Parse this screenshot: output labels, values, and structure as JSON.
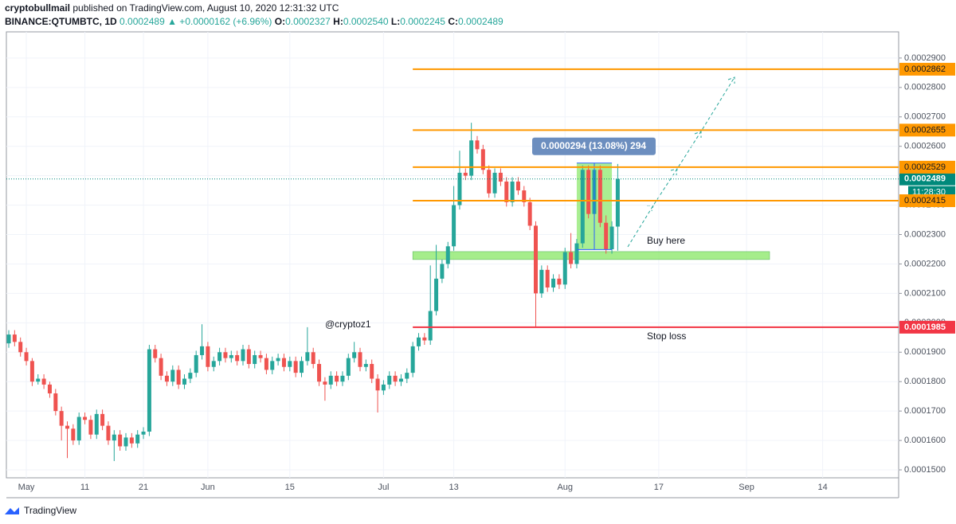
{
  "header": {
    "author": "cryptobullmail",
    "published": "published on TradingView.com, August 10, 2020 12:31:32 UTC",
    "symbol": "BINANCE:QTUMBTC, 1D",
    "last": "0.0002489",
    "change": "▲ +0.0000162 (+6.96%)",
    "o_label": "O:",
    "o": "0.0002327",
    "h_label": "H:",
    "h": "0.0002540",
    "l_label": "L:",
    "l": "0.0002245",
    "c_label": "C:",
    "c": "0.0002489"
  },
  "chart_data": {
    "type": "candlestick",
    "categories": [
      null,
      null,
      null,
      "May",
      null,
      null,
      null,
      null,
      null,
      null,
      null,
      null,
      null,
      "11",
      null,
      null,
      null,
      null,
      null,
      null,
      null,
      null,
      null,
      "21",
      null,
      null,
      null,
      null,
      null,
      null,
      null,
      null,
      null,
      null,
      "Jun",
      null,
      null,
      null,
      null,
      null,
      null,
      null,
      null,
      null,
      null,
      null,
      null,
      null,
      "15",
      null,
      null,
      null,
      null,
      null,
      null,
      null,
      null,
      null,
      null,
      null,
      null,
      null,
      null,
      null,
      "Jul",
      null,
      null,
      null,
      null,
      null,
      null,
      null,
      null,
      null,
      null,
      null,
      "13",
      null,
      null,
      null,
      null,
      null,
      null,
      null,
      null,
      null,
      null,
      null,
      null,
      null,
      null,
      null,
      null,
      null,
      null,
      "Aug",
      null,
      null,
      null,
      null,
      null,
      null,
      null,
      null,
      null,
      null,
      null,
      null,
      null,
      null,
      null,
      "17",
      null,
      null,
      null,
      null,
      null,
      null,
      null,
      null,
      null,
      null,
      null,
      null,
      null,
      null,
      "Sep",
      null,
      null,
      null,
      null,
      null,
      null,
      null,
      null,
      null,
      null,
      null,
      null,
      "14",
      null,
      null,
      null,
      null,
      null,
      null,
      null,
      null,
      null,
      null,
      null,
      null
    ],
    "ohlc": [
      [
        0.000193,
        0.0001975,
        0.0001915,
        0.000196
      ],
      [
        0.000196,
        0.0001975,
        0.000192,
        0.0001935
      ],
      [
        0.0001935,
        0.000195,
        0.0001885,
        0.00019
      ],
      [
        0.00019,
        0.0001915,
        0.0001855,
        0.000187
      ],
      [
        0.000187,
        0.000188,
        0.0001785,
        0.00018
      ],
      [
        0.00018,
        0.0001825,
        0.000179,
        0.000181
      ],
      [
        0.000181,
        0.0001825,
        0.0001775,
        0.000179
      ],
      [
        0.000179,
        0.00018,
        0.0001745,
        0.000176
      ],
      [
        0.000176,
        0.0001775,
        0.0001685,
        0.00017
      ],
      [
        0.00017,
        0.0001715,
        0.00016,
        0.000165
      ],
      [
        0.000165,
        0.0001665,
        0.000154,
        0.000164
      ],
      [
        0.000164,
        0.0001655,
        0.0001585,
        0.00016
      ],
      [
        0.00016,
        0.0001695,
        0.0001585,
        0.000168
      ],
      [
        0.000168,
        0.0001695,
        0.0001655,
        0.000167
      ],
      [
        0.000167,
        0.0001685,
        0.0001605,
        0.000162
      ],
      [
        0.000162,
        0.0001705,
        0.0001605,
        0.000169
      ],
      [
        0.000169,
        0.0001705,
        0.0001635,
        0.000165
      ],
      [
        0.000165,
        0.0001665,
        0.0001585,
        0.00016
      ],
      [
        0.00016,
        0.0001635,
        0.000153,
        0.000162
      ],
      [
        0.000162,
        0.0001635,
        0.0001565,
        0.000158
      ],
      [
        0.000158,
        0.0001625,
        0.0001565,
        0.000161
      ],
      [
        0.000161,
        0.0001625,
        0.0001575,
        0.000159
      ],
      [
        0.000159,
        0.0001635,
        0.0001575,
        0.000162
      ],
      [
        0.000162,
        0.0001645,
        0.0001605,
        0.000163
      ],
      [
        0.000163,
        0.0001925,
        0.0001615,
        0.000191
      ],
      [
        0.000191,
        0.0001925,
        0.0001865,
        0.000188
      ],
      [
        0.000188,
        0.0001895,
        0.0001805,
        0.000182
      ],
      [
        0.000182,
        0.0001835,
        0.0001785,
        0.00018
      ],
      [
        0.00018,
        0.0001855,
        0.0001785,
        0.000184
      ],
      [
        0.000184,
        0.0001855,
        0.0001775,
        0.000179
      ],
      [
        0.000179,
        0.0001825,
        0.0001775,
        0.000181
      ],
      [
        0.000181,
        0.0001845,
        0.0001795,
        0.000183
      ],
      [
        0.000183,
        0.0001905,
        0.0001815,
        0.000189
      ],
      [
        0.000189,
        0.0001995,
        0.0001875,
        0.000192
      ],
      [
        0.000192,
        0.0001935,
        0.0001835,
        0.000185
      ],
      [
        0.000185,
        0.0001885,
        0.0001835,
        0.000187
      ],
      [
        0.000187,
        0.0001915,
        0.0001855,
        0.00019
      ],
      [
        0.00019,
        0.0001915,
        0.0001865,
        0.000188
      ],
      [
        0.000188,
        0.0001905,
        0.0001865,
        0.000189
      ],
      [
        0.000189,
        0.0001905,
        0.0001855,
        0.000187
      ],
      [
        0.000187,
        0.0001925,
        0.0001855,
        0.000191
      ],
      [
        0.000191,
        0.0001925,
        0.0001845,
        0.000186
      ],
      [
        0.000186,
        0.0001905,
        0.0001845,
        0.000189
      ],
      [
        0.000189,
        0.0001905,
        0.0001865,
        0.000188
      ],
      [
        0.000188,
        0.0001895,
        0.0001825,
        0.000184
      ],
      [
        0.000184,
        0.0001885,
        0.0001825,
        0.000187
      ],
      [
        0.000187,
        0.0001895,
        0.0001855,
        0.000188
      ],
      [
        0.000188,
        0.0001895,
        0.0001835,
        0.000185
      ],
      [
        0.000185,
        0.0001885,
        0.0001835,
        0.000187
      ],
      [
        0.000187,
        0.0001885,
        0.0001815,
        0.000183
      ],
      [
        0.000183,
        0.0001885,
        0.0001815,
        0.000187
      ],
      [
        0.000187,
        0.0001985,
        0.0001855,
        0.00019
      ],
      [
        0.00019,
        0.0001915,
        0.0001845,
        0.000186
      ],
      [
        0.000186,
        0.0001875,
        0.0001785,
        0.00018
      ],
      [
        0.00018,
        0.0001815,
        0.0001735,
        0.000179
      ],
      [
        0.000179,
        0.0001835,
        0.0001775,
        0.000182
      ],
      [
        0.000182,
        0.0001835,
        0.0001785,
        0.00018
      ],
      [
        0.00018,
        0.0001835,
        0.0001785,
        0.000182
      ],
      [
        0.000182,
        0.0001895,
        0.0001805,
        0.000188
      ],
      [
        0.000188,
        0.0001935,
        0.0001865,
        0.00019
      ],
      [
        0.00019,
        0.0001915,
        0.0001835,
        0.000185
      ],
      [
        0.000185,
        0.0001875,
        0.0001835,
        0.000186
      ],
      [
        0.000186,
        0.0001875,
        0.0001795,
        0.000181
      ],
      [
        0.000181,
        0.0001825,
        0.0001695,
        0.000177
      ],
      [
        0.000177,
        0.0001805,
        0.0001755,
        0.000179
      ],
      [
        0.000179,
        0.0001835,
        0.0001775,
        0.000182
      ],
      [
        0.000182,
        0.0001835,
        0.0001785,
        0.00018
      ],
      [
        0.00018,
        0.0001825,
        0.0001785,
        0.000181
      ],
      [
        0.000181,
        0.0001845,
        0.0001795,
        0.000183
      ],
      [
        0.000183,
        0.0001935,
        0.0001815,
        0.000192
      ],
      [
        0.000192,
        0.0001965,
        0.0001905,
        0.000195
      ],
      [
        0.000195,
        0.0001965,
        0.0001925,
        0.000194
      ],
      [
        0.000194,
        0.0002195,
        0.0001925,
        0.000204
      ],
      [
        0.000204,
        0.0002265,
        0.0002025,
        0.000215
      ],
      [
        0.000215,
        0.0002215,
        0.0002135,
        0.00022
      ],
      [
        0.00022,
        0.0002275,
        0.0002185,
        0.000226
      ],
      [
        0.000226,
        0.0002465,
        0.0002245,
        0.00024
      ],
      [
        0.00024,
        0.0002585,
        0.0002385,
        0.000251
      ],
      [
        0.000251,
        0.0002525,
        0.0002485,
        0.00025
      ],
      [
        0.00025,
        0.000268,
        0.0002485,
        0.000262
      ],
      [
        0.000262,
        0.0002635,
        0.0002575,
        0.000259
      ],
      [
        0.000259,
        0.0002605,
        0.0002505,
        0.000252
      ],
      [
        0.000252,
        0.0002535,
        0.0002425,
        0.000244
      ],
      [
        0.000244,
        0.0002525,
        0.0002425,
        0.000251
      ],
      [
        0.000251,
        0.0002525,
        0.0002465,
        0.000248
      ],
      [
        0.000248,
        0.0002495,
        0.0002395,
        0.000241
      ],
      [
        0.000241,
        0.0002495,
        0.0002395,
        0.000248
      ],
      [
        0.000248,
        0.0002495,
        0.0002435,
        0.000245
      ],
      [
        0.000245,
        0.0002465,
        0.0002395,
        0.000241
      ],
      [
        0.000241,
        0.0002425,
        0.0002315,
        0.000233
      ],
      [
        0.000233,
        0.0002345,
        0.0001985,
        0.00021
      ],
      [
        0.00021,
        0.0002195,
        0.0002085,
        0.000218
      ],
      [
        0.000218,
        0.0002195,
        0.0002105,
        0.000212
      ],
      [
        0.000212,
        0.0002165,
        0.0002105,
        0.000215
      ],
      [
        0.000215,
        0.0002165,
        0.0002115,
        0.000213
      ],
      [
        0.000213,
        0.0002255,
        0.0002115,
        0.000224
      ],
      [
        0.000224,
        0.0002305,
        0.0002185,
        0.00022
      ],
      [
        0.00022,
        0.0002285,
        0.0002185,
        0.000227
      ],
      [
        0.000227,
        0.0002535,
        0.0002255,
        0.000252
      ],
      [
        0.000252,
        0.0002535,
        0.0002355,
        0.000237
      ],
      [
        0.000237,
        0.0002535,
        0.0002355,
        0.000252
      ],
      [
        0.000252,
        0.0002535,
        0.0002325,
        0.000234
      ],
      [
        0.000234,
        0.0002365,
        0.0002235,
        0.000225
      ],
      [
        0.000225,
        0.0002345,
        0.0002235,
        0.0002327
      ],
      [
        0.0002327,
        0.000254,
        0.0002245,
        0.0002489
      ],
      null,
      null,
      null,
      null,
      null,
      null,
      null,
      null,
      null,
      null,
      null,
      null,
      null,
      null,
      null,
      null,
      null,
      null,
      null,
      null,
      null,
      null,
      null,
      null,
      null,
      null,
      null,
      null,
      null,
      null,
      null,
      null,
      null,
      null,
      null,
      null,
      null,
      null,
      null,
      null,
      null,
      null,
      null,
      null,
      null,
      null,
      null
    ],
    "up_color": "#26a69a",
    "down_color": "#ef5350",
    "ylim": [
      0.0001473,
      0.0002989
    ],
    "yticks": [
      {
        "value": 0.00015,
        "label": "0.0001500"
      },
      {
        "value": 0.00016,
        "label": "0.0001600"
      },
      {
        "value": 0.00017,
        "label": "0.0001700"
      },
      {
        "value": 0.00018,
        "label": "0.0001800"
      },
      {
        "value": 0.00019,
        "label": "0.0001900"
      },
      {
        "value": 0.0002,
        "label": "0.0002000"
      },
      {
        "value": 0.00021,
        "label": "0.0002100"
      },
      {
        "value": 0.00022,
        "label": "0.0002200"
      },
      {
        "value": 0.00023,
        "label": "0.0002300"
      },
      {
        "value": 0.00024,
        "label": "0.0002400"
      },
      {
        "value": 0.00025,
        "label": "0.0002500"
      },
      {
        "value": 0.00026,
        "label": "0.0002600"
      },
      {
        "value": 0.00027,
        "label": "0.0002700"
      },
      {
        "value": 0.00028,
        "label": "0.0002800"
      },
      {
        "value": 0.00029,
        "label": "0.0002900"
      }
    ],
    "levels": [
      {
        "value": 0.0002862,
        "color": "#ff9800"
      },
      {
        "value": 0.0002655,
        "color": "#ff9800"
      },
      {
        "value": 0.0002529,
        "color": "#ff9800"
      },
      {
        "value": 0.0002415,
        "color": "#ff9800"
      }
    ],
    "stop_loss": {
      "value": 0.0001985,
      "label": "Stop loss",
      "color": "#f23645"
    },
    "current": {
      "value": 0.0002489,
      "color": "#00897b",
      "countdown": "11:28:30"
    },
    "zone": {
      "range": [
        0.0002215,
        0.0002242
      ],
      "label": "Buy here",
      "color": "#8ee86e"
    },
    "measure": {
      "from": 0.0002249,
      "to": 0.0002543,
      "label": "0.0000294 (13.08%) 294"
    },
    "annotation": "@cryptoz1"
  },
  "footer": {
    "brand": "TradingView"
  }
}
